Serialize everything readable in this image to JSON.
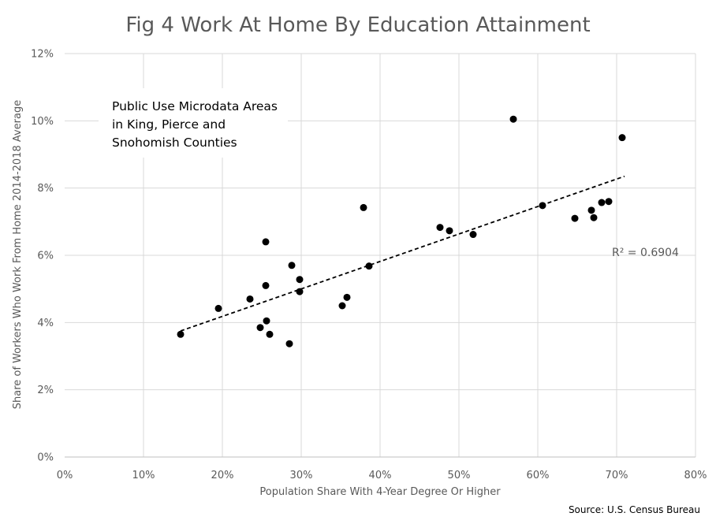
{
  "chart_data": {
    "type": "scatter",
    "title": "Fig 4 Work At Home By Education Attainment",
    "xlabel": "Population Share With 4-Year Degree Or Higher",
    "ylabel": "Share of Workers  Who Work From Home  2014-2018 Average",
    "xlim": [
      0,
      0.8
    ],
    "ylim": [
      0,
      0.12
    ],
    "x_ticks": [
      "0%",
      "10%",
      "20%",
      "30%",
      "40%",
      "50%",
      "60%",
      "70%",
      "80%"
    ],
    "y_ticks": [
      "0%",
      "2%",
      "4%",
      "6%",
      "8%",
      "10%",
      "12%"
    ],
    "grid": "vertical and horizontal",
    "marker_color": "#000000",
    "points": [
      {
        "x": 0.147,
        "y": 0.0365
      },
      {
        "x": 0.195,
        "y": 0.0442
      },
      {
        "x": 0.235,
        "y": 0.047
      },
      {
        "x": 0.248,
        "y": 0.0385
      },
      {
        "x": 0.255,
        "y": 0.064
      },
      {
        "x": 0.255,
        "y": 0.051
      },
      {
        "x": 0.256,
        "y": 0.0405
      },
      {
        "x": 0.26,
        "y": 0.0365
      },
      {
        "x": 0.285,
        "y": 0.0337
      },
      {
        "x": 0.288,
        "y": 0.057
      },
      {
        "x": 0.298,
        "y": 0.0528
      },
      {
        "x": 0.298,
        "y": 0.0492
      },
      {
        "x": 0.352,
        "y": 0.045
      },
      {
        "x": 0.358,
        "y": 0.0475
      },
      {
        "x": 0.379,
        "y": 0.0742
      },
      {
        "x": 0.386,
        "y": 0.0568
      },
      {
        "x": 0.476,
        "y": 0.0683
      },
      {
        "x": 0.488,
        "y": 0.0673
      },
      {
        "x": 0.518,
        "y": 0.0662
      },
      {
        "x": 0.569,
        "y": 0.1005
      },
      {
        "x": 0.606,
        "y": 0.0748
      },
      {
        "x": 0.647,
        "y": 0.071
      },
      {
        "x": 0.668,
        "y": 0.0734
      },
      {
        "x": 0.671,
        "y": 0.0712
      },
      {
        "x": 0.681,
        "y": 0.0757
      },
      {
        "x": 0.69,
        "y": 0.076
      },
      {
        "x": 0.707,
        "y": 0.095
      }
    ],
    "trendline": {
      "style": "dashed linear",
      "x": [
        0.147,
        0.71
      ],
      "y": [
        0.0375,
        0.0835
      ],
      "label": "R² = 0.6904"
    },
    "annotation": [
      "Public Use Microdata Areas",
      "in King, Pierce and",
      "Snohomish Counties"
    ]
  },
  "source_note": "Source: U.S. Census Bureau"
}
